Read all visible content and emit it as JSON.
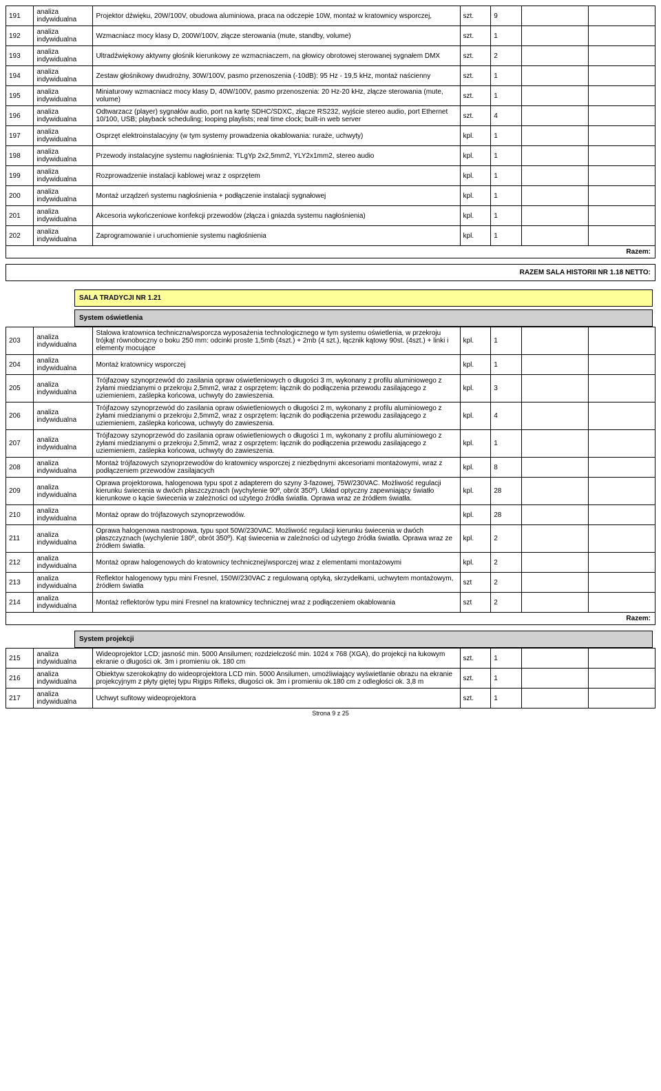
{
  "basis_label": "analiza\nindywidualna",
  "razem_label": "Razem:",
  "summary_box_label": "RAZEM SALA HISTORII NR 1.18 NETTO:",
  "section_yellow": "SALA TRADYCJI NR 1.21",
  "section_grey_1": "System oświetlenia",
  "section_grey_2": "System projekcji",
  "page_footer": "Strona 9 z 25",
  "rows_a": [
    {
      "n": "191",
      "d": "Projektor dźwięku, 20W/100V, obudowa aluminiowa, praca na odczepie 10W, montaż w kratownicy wsporczej,",
      "u": "szt.",
      "q": "9"
    },
    {
      "n": "192",
      "d": "Wzmacniacz mocy klasy D, 200W/100V, złącze sterowania (mute, standby, volume)",
      "u": "szt.",
      "q": "1"
    },
    {
      "n": "193",
      "d": "Ultradźwiękowy aktywny głośnik kierunkowy ze wzmacniaczem, na głowicy obrotowej sterowanej sygnałem DMX",
      "u": "szt.",
      "q": "2"
    },
    {
      "n": "194",
      "d": "Zestaw głośnikowy dwudrożny, 30W/100V, pasmo przenoszenia (-10dB): 95 Hz - 19,5 kHz, montaż naścienny",
      "u": "szt.",
      "q": "1"
    },
    {
      "n": "195",
      "d": "Miniaturowy wzmacniacz mocy klasy D, 40W/100V, pasmo przenoszenia: 20 Hz-20 kHz, złącze sterowania (mute, volume)",
      "u": "szt.",
      "q": "1"
    },
    {
      "n": "196",
      "d": "Odtwarzacz (player) sygnałów audio, port na kartę SDHC/SDXC, złącze RS232, wyjście stereo audio, port Ethernet 10/100, USB; playback scheduling; looping playlists; real time clock; built-in web server",
      "u": "szt.",
      "q": "4"
    },
    {
      "n": "197",
      "d": "Osprzęt elektroinstalacyjny (w tym systemy prowadzenia okablowania: ruraże, uchwyty)",
      "u": "kpl.",
      "q": "1"
    },
    {
      "n": "198",
      "d": "Przewody instalacyjne systemu nagłośnienia: TLgYp 2x2,5mm2, YLY2x1mm2, stereo audio",
      "u": "kpl.",
      "q": "1"
    },
    {
      "n": "199",
      "d": "Rozprowadzenie instalacji kablowej wraz z osprzętem",
      "u": "kpl.",
      "q": "1"
    },
    {
      "n": "200",
      "d": "Montaż urządzeń systemu nagłośnienia + podłączenie instalacji sygnałowej",
      "u": "kpl.",
      "q": "1"
    },
    {
      "n": "201",
      "d": "Akcesoria wykończeniowe konfekcji przewodów (złącza i gniazda systemu nagłośnienia)",
      "u": "kpl.",
      "q": "1"
    },
    {
      "n": "202",
      "d": "Zaprogramowanie i uruchomienie systemu nagłośnienia",
      "u": "kpl.",
      "q": "1"
    }
  ],
  "rows_b": [
    {
      "n": "203",
      "d": "Stalowa kratownica techniczna/wsporcza wyposażenia technologicznego w tym systemu oświetlenia, w przekroju trójkąt równoboczny o boku 250 mm: odcinki proste 1,5mb (4szt.) + 2mb (4 szt.), łącznik kątowy 90st. (4szt.) + linki i elementy mocujące",
      "u": "kpl.",
      "q": "1"
    },
    {
      "n": "204",
      "d": "Montaż kratownicy wsporczej",
      "u": "kpl.",
      "q": "1"
    },
    {
      "n": "205",
      "d": "Trójfazowy szynoprzewód do zasilania opraw oświetleniowych o długości 3 m, wykonany z profilu aluminiowego z żyłami miedzianymi o przekroju 2,5mm2, wraz z osprzętem: łącznik do podłączenia przewodu zasilającego z uziemieniem, zaślepka końcowa, uchwyty do zawieszenia.",
      "u": "kpl.",
      "q": "3"
    },
    {
      "n": "206",
      "d": "Trójfazowy szynoprzewód do zasilania opraw oświetleniowych o długości 2 m, wykonany z profilu aluminiowego z żyłami miedzianymi o przekroju 2,5mm2, wraz z osprzętem: łącznik do podłączenia przewodu zasilającego z uziemieniem, zaślepka końcowa, uchwyty do zawieszenia.",
      "u": "kpl.",
      "q": "4"
    },
    {
      "n": "207",
      "d": "Trójfazowy szynoprzewód do zasilania opraw oświetleniowych o długości 1 m, wykonany z profilu aluminiowego z żyłami miedzianymi o przekroju 2,5mm2, wraz z osprzętem: łącznik do podłączenia przewodu zasilającego z uziemieniem, zaślepka końcowa, uchwyty do zawieszenia.",
      "u": "kpl.",
      "q": "1"
    },
    {
      "n": "208",
      "d": "Montaż trójfazowych szynoprzewodów do kratownicy wsporczej z niezbędnymi akcesoriami montażowymi, wraz z podłączeniem przewodów zasilajacych",
      "u": "kpl.",
      "q": "8"
    },
    {
      "n": "209",
      "d": "Oprawa projektorowa, halogenowa typu spot z adapterem do szyny 3-fazowej, 75W/230VAC. Możliwość regulacji kierunku świecenia w dwóch płaszczyznach (wychylenie 90º, obrót 350º). Układ optyczny zapewniający światło kierunkowe o kącie świecenia w zależności od użytego źródła światła. Oprawa wraz ze źródłem światła.",
      "u": "kpl.",
      "q": "28"
    },
    {
      "n": "210",
      "d": "Montaż opraw do trójfazowych szynoprzewodów.",
      "u": "kpl.",
      "q": "28"
    },
    {
      "n": "211",
      "d": "Oprawa halogenowa nastropowa, typu spot 50W/230VAC. Możliwość regulacji kierunku świecenia w dwóch płaszczyznach (wychylenie 180º, obrót 350º). Kąt świecenia w zależności od użytego źródła światła. Oprawa wraz ze źródłem światła.",
      "u": "kpl.",
      "q": "2"
    },
    {
      "n": "212",
      "d": "Montaż opraw halogenowych do kratownicy technicznej/wsporczej wraz z elementami montażowymi",
      "u": "kpl.",
      "q": "2"
    },
    {
      "n": "213",
      "d": "Reflektor halogenowy typu mini Fresnel, 150W/230VAC z regulowaną optyką, skrzydełkami, uchwytem montażowym, źródłem światła",
      "u": "szt",
      "q": "2"
    },
    {
      "n": "214",
      "d": "Montaż reflektorów typu mini Fresnel na kratownicy technicznej wraz z podłączeniem okablowania",
      "u": "szt",
      "q": "2"
    }
  ],
  "rows_c": [
    {
      "n": "215",
      "d": "Wideoprojektor LCD; jasność min. 5000 Ansilumen; rozdzielczość min. 1024 x 768 (XGA), do projekcji na łukowym ekranie o długości ok. 3m i promieniu ok. 180 cm",
      "u": "szt.",
      "q": "1"
    },
    {
      "n": "216",
      "d": "Obiektyw szerokokątny do wideoprojektora LCD min. 5000 Ansilumen, umożliwiający wyświetlanie obrazu na ekranie projekcyjnym z płyty giętej typu Rigips Rifleks, długości ok. 3m i promieniu ok.180 cm z odległości ok. 3,8 m",
      "u": "szt.",
      "q": "1"
    },
    {
      "n": "217",
      "d": "Uchwyt sufitowy wideoprojektora",
      "u": "szt.",
      "q": "1"
    }
  ]
}
